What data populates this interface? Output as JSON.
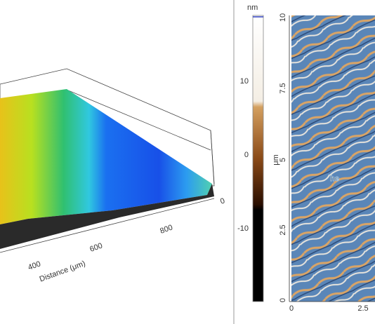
{
  "left_plot": {
    "x_ticks": [
      "400",
      "600",
      "800",
      "0"
    ],
    "x_label": "Distance (μm)"
  },
  "colorbar": {
    "unit": "nm",
    "ticks": [
      "10",
      "0",
      "-10"
    ]
  },
  "afm_image": {
    "y_label": "μm",
    "y_ticks": [
      "10",
      "7.5",
      "5",
      "2.5",
      "0"
    ],
    "x_ticks": [
      "0",
      "2.5"
    ],
    "overlay_text": "he"
  }
}
